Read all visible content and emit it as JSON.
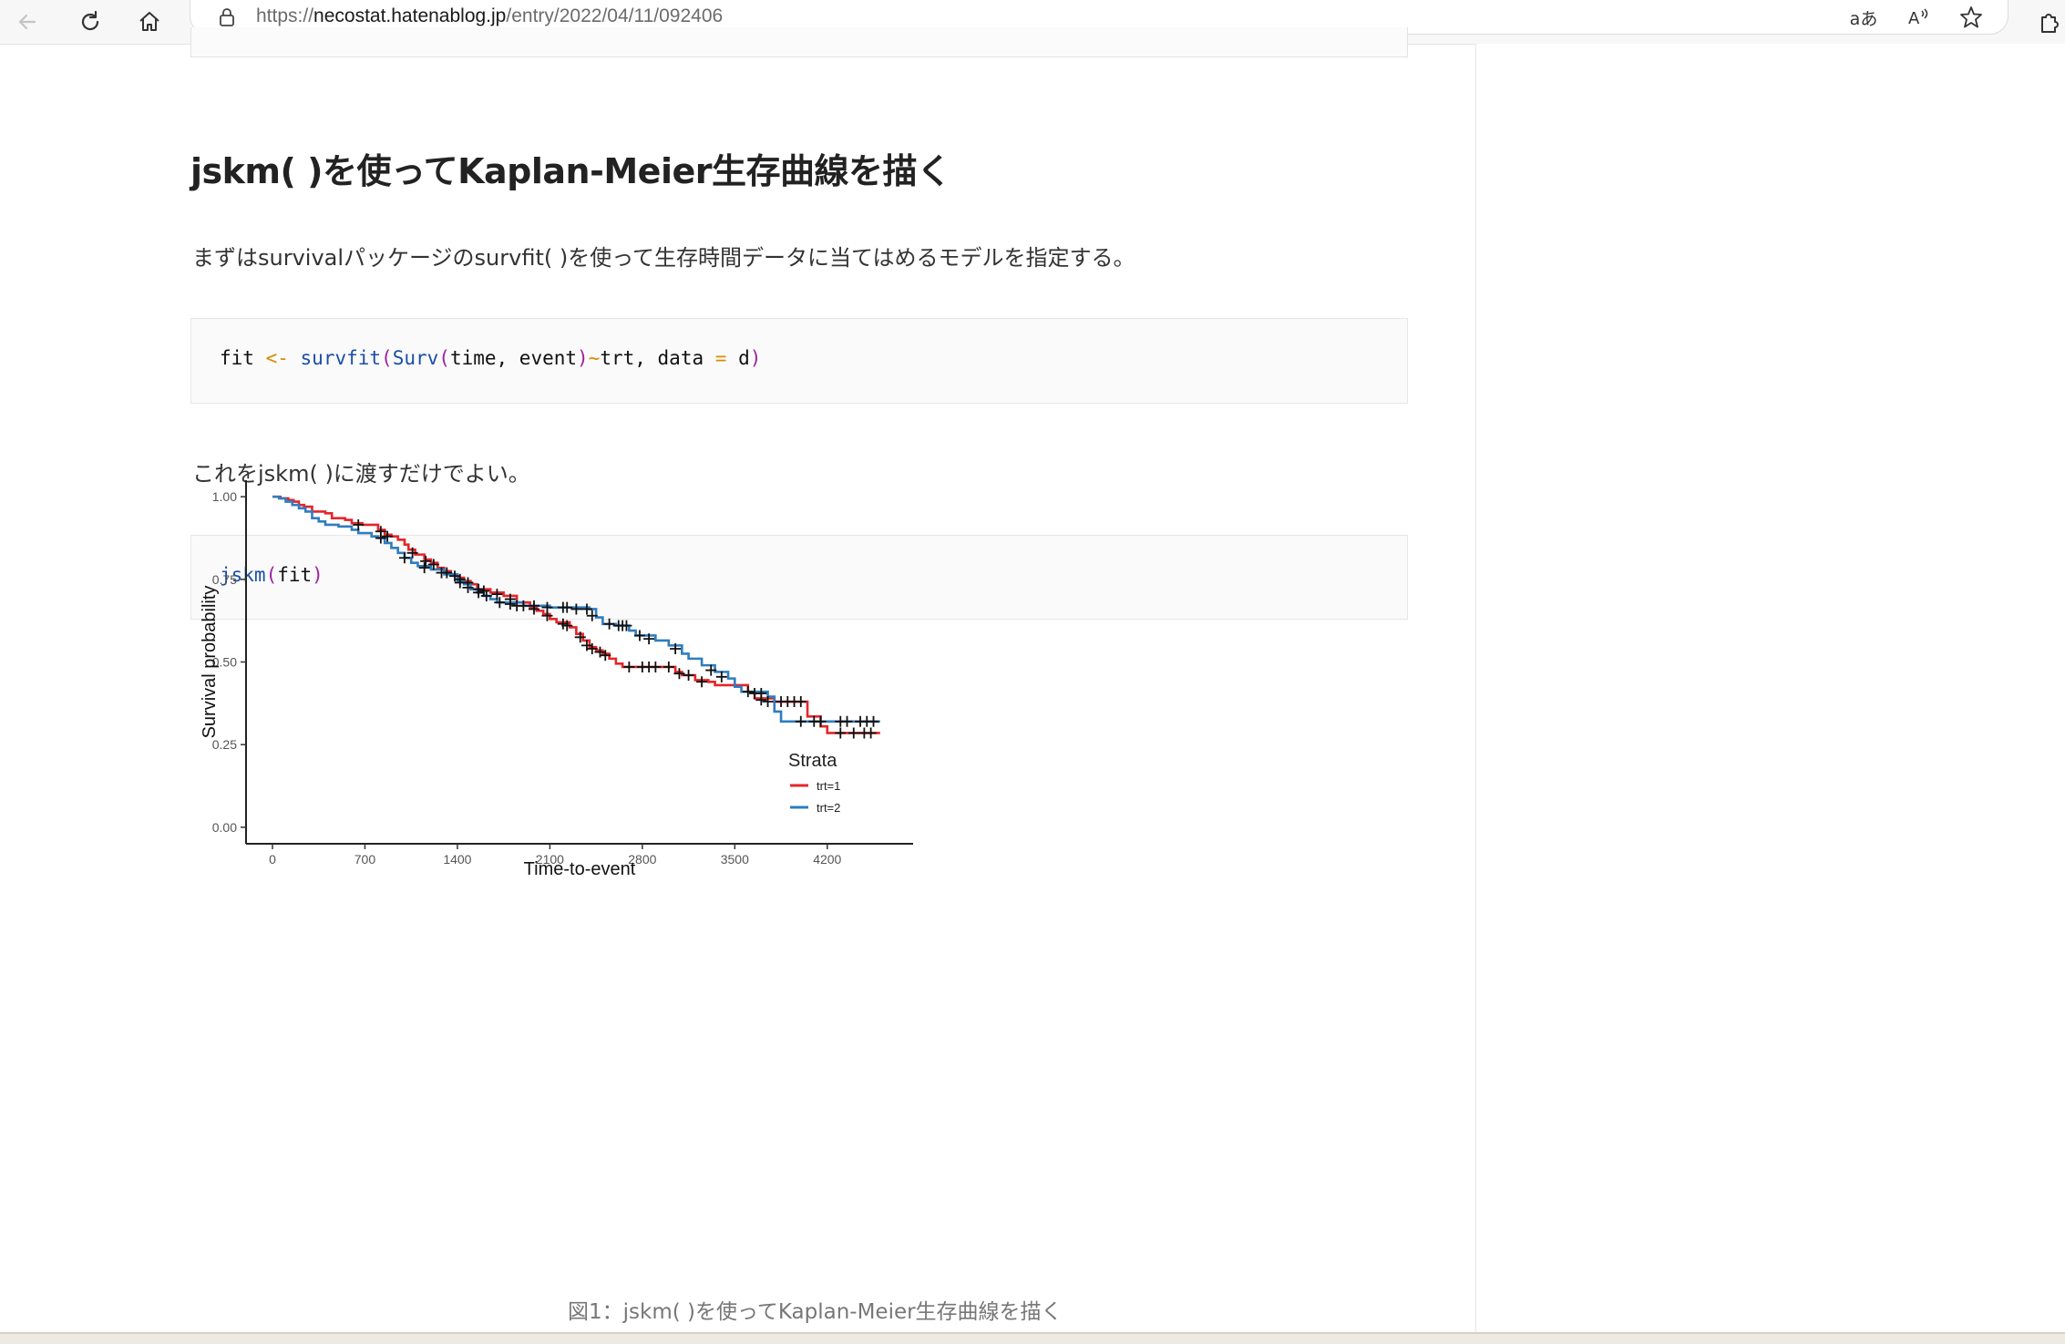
{
  "browser": {
    "url_host": "necostat.hatenablog.jp",
    "url_path": "/entry/2022/04/11/092406",
    "url_scheme": "https://",
    "read_aloud_label": "aあ"
  },
  "article": {
    "heading": "jskm( )を使ってKaplan-Meier生存曲線を描く",
    "para1": "まずはsurvivalパッケージのsurvfit( )を使って生存時間データに当てはめるモデルを指定する。",
    "code1": {
      "t1": "fit ",
      "t2": "<-",
      "t3": " ",
      "t4": "survfit",
      "t5": "(",
      "t6": "Surv",
      "t7": "(",
      "t8": "time, event",
      "t9": ")",
      "t10": "~",
      "t11": "trt, data ",
      "t12": "=",
      "t13": " d",
      "t14": ")"
    },
    "para2": "これをjskm( )に渡すだけでよい。",
    "code2": {
      "t1": "jskm",
      "t2": "(",
      "t3": "fit",
      "t4": ")"
    },
    "caption": "図1：jskm( )を使ってKaplan-Meier生存曲線を描く"
  },
  "chart_data": {
    "type": "line",
    "xlabel": "Time-to-event",
    "ylabel": "Survival probability",
    "xlim": [
      -200,
      4850
    ],
    "ylim": [
      -0.05,
      1.05
    ],
    "xticks": [
      0,
      700,
      1400,
      2100,
      2800,
      3500,
      4200
    ],
    "yticks": [
      0.0,
      0.25,
      0.5,
      0.75,
      1.0
    ],
    "ytick_labels": [
      "0.00",
      "0.25",
      "0.50",
      "0.75",
      "1.00"
    ],
    "legend_title": "Strata",
    "legend_position": "right",
    "series": [
      {
        "name": "trt=1",
        "color": "#e3262b",
        "step_points": [
          [
            0,
            1.0
          ],
          [
            60,
            0.995
          ],
          [
            120,
            0.99
          ],
          [
            160,
            0.985
          ],
          [
            200,
            0.975
          ],
          [
            240,
            0.97
          ],
          [
            300,
            0.955
          ],
          [
            400,
            0.95
          ],
          [
            450,
            0.935
          ],
          [
            550,
            0.93
          ],
          [
            600,
            0.92
          ],
          [
            680,
            0.915
          ],
          [
            800,
            0.9
          ],
          [
            850,
            0.885
          ],
          [
            900,
            0.88
          ],
          [
            950,
            0.87
          ],
          [
            1000,
            0.855
          ],
          [
            1030,
            0.84
          ],
          [
            1080,
            0.825
          ],
          [
            1150,
            0.81
          ],
          [
            1200,
            0.8
          ],
          [
            1250,
            0.785
          ],
          [
            1300,
            0.775
          ],
          [
            1350,
            0.765
          ],
          [
            1400,
            0.755
          ],
          [
            1450,
            0.745
          ],
          [
            1500,
            0.735
          ],
          [
            1550,
            0.72
          ],
          [
            1650,
            0.71
          ],
          [
            1750,
            0.7
          ],
          [
            1850,
            0.68
          ],
          [
            1950,
            0.665
          ],
          [
            2000,
            0.655
          ],
          [
            2050,
            0.645
          ],
          [
            2100,
            0.63
          ],
          [
            2150,
            0.62
          ],
          [
            2250,
            0.605
          ],
          [
            2300,
            0.585
          ],
          [
            2350,
            0.565
          ],
          [
            2400,
            0.545
          ],
          [
            2450,
            0.535
          ],
          [
            2500,
            0.525
          ],
          [
            2550,
            0.51
          ],
          [
            2600,
            0.495
          ],
          [
            2650,
            0.485
          ],
          [
            3050,
            0.47
          ],
          [
            3100,
            0.46
          ],
          [
            3200,
            0.445
          ],
          [
            3300,
            0.44
          ],
          [
            3350,
            0.43
          ],
          [
            3600,
            0.41
          ],
          [
            3650,
            0.39
          ],
          [
            3800,
            0.38
          ],
          [
            4050,
            0.335
          ],
          [
            4150,
            0.305
          ],
          [
            4200,
            0.285
          ],
          [
            4600,
            0.285
          ]
        ],
        "censored": [
          [
            650,
            0.915
          ],
          [
            820,
            0.895
          ],
          [
            870,
            0.88
          ],
          [
            1060,
            0.83
          ],
          [
            1160,
            0.805
          ],
          [
            1220,
            0.795
          ],
          [
            1320,
            0.77
          ],
          [
            1380,
            0.76
          ],
          [
            1420,
            0.75
          ],
          [
            1480,
            0.74
          ],
          [
            1560,
            0.72
          ],
          [
            1600,
            0.715
          ],
          [
            1700,
            0.705
          ],
          [
            1800,
            0.69
          ],
          [
            1900,
            0.67
          ],
          [
            1980,
            0.66
          ],
          [
            2080,
            0.64
          ],
          [
            2200,
            0.615
          ],
          [
            2230,
            0.61
          ],
          [
            2330,
            0.575
          ],
          [
            2380,
            0.55
          ],
          [
            2420,
            0.54
          ],
          [
            2480,
            0.53
          ],
          [
            2520,
            0.52
          ],
          [
            2700,
            0.485
          ],
          [
            2800,
            0.485
          ],
          [
            2850,
            0.485
          ],
          [
            2900,
            0.485
          ],
          [
            3000,
            0.485
          ],
          [
            3080,
            0.465
          ],
          [
            3150,
            0.46
          ],
          [
            3250,
            0.44
          ],
          [
            3700,
            0.385
          ],
          [
            3750,
            0.38
          ],
          [
            3850,
            0.38
          ],
          [
            3900,
            0.38
          ],
          [
            3950,
            0.38
          ],
          [
            4000,
            0.38
          ],
          [
            4300,
            0.285
          ],
          [
            4400,
            0.285
          ],
          [
            4480,
            0.285
          ],
          [
            4530,
            0.285
          ]
        ]
      },
      {
        "name": "trt=2",
        "color": "#2f7dbf",
        "step_points": [
          [
            0,
            1.0
          ],
          [
            50,
            0.995
          ],
          [
            100,
            0.985
          ],
          [
            150,
            0.975
          ],
          [
            200,
            0.965
          ],
          [
            250,
            0.955
          ],
          [
            300,
            0.935
          ],
          [
            350,
            0.925
          ],
          [
            400,
            0.915
          ],
          [
            500,
            0.91
          ],
          [
            600,
            0.9
          ],
          [
            650,
            0.89
          ],
          [
            750,
            0.88
          ],
          [
            800,
            0.875
          ],
          [
            850,
            0.86
          ],
          [
            900,
            0.845
          ],
          [
            950,
            0.83
          ],
          [
            1000,
            0.815
          ],
          [
            1050,
            0.8
          ],
          [
            1100,
            0.79
          ],
          [
            1200,
            0.78
          ],
          [
            1300,
            0.765
          ],
          [
            1400,
            0.745
          ],
          [
            1450,
            0.735
          ],
          [
            1500,
            0.72
          ],
          [
            1550,
            0.71
          ],
          [
            1600,
            0.7
          ],
          [
            1650,
            0.69
          ],
          [
            1700,
            0.68
          ],
          [
            1900,
            0.67
          ],
          [
            2100,
            0.665
          ],
          [
            2400,
            0.66
          ],
          [
            2450,
            0.635
          ],
          [
            2500,
            0.615
          ],
          [
            2600,
            0.61
          ],
          [
            2700,
            0.595
          ],
          [
            2750,
            0.58
          ],
          [
            2900,
            0.565
          ],
          [
            3000,
            0.55
          ],
          [
            3100,
            0.525
          ],
          [
            3150,
            0.51
          ],
          [
            3250,
            0.49
          ],
          [
            3350,
            0.47
          ],
          [
            3450,
            0.45
          ],
          [
            3500,
            0.425
          ],
          [
            3550,
            0.41
          ],
          [
            3750,
            0.395
          ],
          [
            3800,
            0.35
          ],
          [
            3850,
            0.32
          ],
          [
            4600,
            0.32
          ]
        ],
        "censored": [
          [
            820,
            0.875
          ],
          [
            1000,
            0.815
          ],
          [
            1150,
            0.785
          ],
          [
            1280,
            0.77
          ],
          [
            1420,
            0.74
          ],
          [
            1480,
            0.725
          ],
          [
            1560,
            0.71
          ],
          [
            1620,
            0.7
          ],
          [
            1720,
            0.68
          ],
          [
            1800,
            0.675
          ],
          [
            1850,
            0.67
          ],
          [
            1980,
            0.67
          ],
          [
            2080,
            0.665
          ],
          [
            2200,
            0.665
          ],
          [
            2230,
            0.665
          ],
          [
            2300,
            0.66
          ],
          [
            2380,
            0.66
          ],
          [
            2420,
            0.64
          ],
          [
            2550,
            0.615
          ],
          [
            2620,
            0.61
          ],
          [
            2650,
            0.61
          ],
          [
            2680,
            0.61
          ],
          [
            2780,
            0.58
          ],
          [
            2850,
            0.57
          ],
          [
            3050,
            0.54
          ],
          [
            3320,
            0.475
          ],
          [
            3400,
            0.455
          ],
          [
            3600,
            0.41
          ],
          [
            3650,
            0.405
          ],
          [
            3700,
            0.405
          ],
          [
            4000,
            0.32
          ],
          [
            4100,
            0.32
          ],
          [
            4150,
            0.32
          ],
          [
            4300,
            0.32
          ],
          [
            4350,
            0.32
          ],
          [
            4450,
            0.32
          ],
          [
            4500,
            0.32
          ],
          [
            4550,
            0.32
          ]
        ]
      }
    ]
  }
}
